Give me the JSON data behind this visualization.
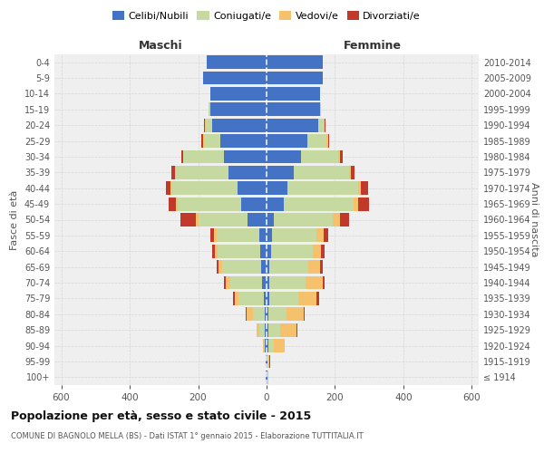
{
  "age_groups": [
    "100+",
    "95-99",
    "90-94",
    "85-89",
    "80-84",
    "75-79",
    "70-74",
    "65-69",
    "60-64",
    "55-59",
    "50-54",
    "45-49",
    "40-44",
    "35-39",
    "30-34",
    "25-29",
    "20-24",
    "15-19",
    "10-14",
    "5-9",
    "0-4"
  ],
  "birth_years": [
    "≤ 1914",
    "1915-1919",
    "1920-1924",
    "1925-1929",
    "1930-1934",
    "1935-1939",
    "1940-1944",
    "1945-1949",
    "1950-1954",
    "1955-1959",
    "1960-1964",
    "1965-1969",
    "1970-1974",
    "1975-1979",
    "1980-1984",
    "1985-1989",
    "1990-1994",
    "1995-1999",
    "2000-2004",
    "2005-2009",
    "2010-2014"
  ],
  "maschi": {
    "celibi": [
      2,
      2,
      4,
      5,
      6,
      8,
      12,
      15,
      18,
      22,
      55,
      75,
      85,
      110,
      125,
      135,
      160,
      165,
      165,
      185,
      175
    ],
    "coniugati": [
      0,
      0,
      4,
      15,
      35,
      75,
      95,
      115,
      125,
      125,
      145,
      185,
      190,
      155,
      118,
      48,
      18,
      4,
      0,
      0,
      0
    ],
    "vedovi": [
      0,
      0,
      2,
      8,
      18,
      10,
      12,
      10,
      8,
      6,
      6,
      5,
      5,
      2,
      2,
      2,
      2,
      0,
      0,
      0,
      0
    ],
    "divorziati": [
      0,
      0,
      0,
      0,
      2,
      5,
      5,
      6,
      8,
      10,
      45,
      20,
      14,
      12,
      5,
      5,
      2,
      0,
      0,
      0,
      0
    ]
  },
  "femmine": {
    "nubili": [
      2,
      2,
      5,
      5,
      5,
      8,
      8,
      8,
      12,
      15,
      22,
      50,
      62,
      80,
      100,
      120,
      150,
      155,
      155,
      165,
      165
    ],
    "coniugate": [
      0,
      2,
      15,
      35,
      52,
      85,
      105,
      115,
      122,
      132,
      172,
      205,
      205,
      162,
      110,
      55,
      18,
      5,
      0,
      0,
      0
    ],
    "vedove": [
      2,
      5,
      32,
      48,
      52,
      52,
      52,
      32,
      26,
      20,
      20,
      12,
      8,
      5,
      5,
      5,
      2,
      0,
      0,
      0,
      0
    ],
    "divorziate": [
      0,
      2,
      2,
      2,
      2,
      8,
      5,
      8,
      10,
      12,
      28,
      32,
      22,
      10,
      8,
      2,
      2,
      0,
      0,
      0,
      0
    ]
  },
  "colors": {
    "celibi_nubili": "#4472c4",
    "coniugati_e": "#c5d9a0",
    "vedovi_e": "#f5c16c",
    "divorziati_e": "#c0392b"
  },
  "xlim": 620,
  "xticks": [
    -600,
    -400,
    -200,
    0,
    200,
    400,
    600
  ],
  "title": "Popolazione per età, sesso e stato civile - 2015",
  "subtitle": "COMUNE DI BAGNOLO MELLA (BS) - Dati ISTAT 1° gennaio 2015 - Elaborazione TUTTITALIA.IT",
  "ylabel_left": "Fasce di età",
  "ylabel_right": "Anni di nascita",
  "xlabel_maschi": "Maschi",
  "xlabel_femmine": "Femmine",
  "bg_color": "#ffffff",
  "plot_bg": "#efefef",
  "grid_color": "#cccccc",
  "bar_height": 0.85,
  "legend_labels": [
    "Celibi/Nubili",
    "Coniugati/e",
    "Vedovi/e",
    "Divorziati/e"
  ]
}
